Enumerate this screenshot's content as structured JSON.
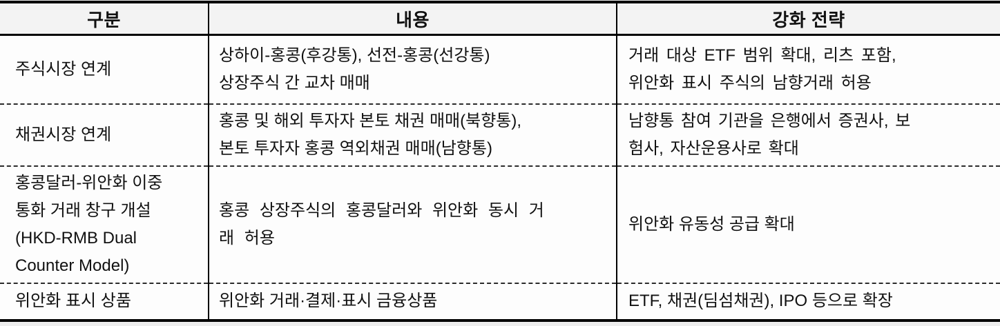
{
  "table": {
    "columns": [
      {
        "label": "구분"
      },
      {
        "label": "내용"
      },
      {
        "label": "강화 전략"
      }
    ],
    "rows": [
      {
        "category": "주식시장 연계",
        "content": "상하이-홍콩(후강통), 선전-홍콩(선강통)\n상장주식 간 교차 매매",
        "strategy": "거래 대상 ETF 범위 확대, 리츠 포함,\n위안화 표시 주식의 남향거래 허용"
      },
      {
        "category": "채권시장 연계",
        "content": "홍콩 및 해외 투자자 본토 채권 매매(북향통),\n본토 투자자 홍콩 역외채권 매매(남향통)",
        "strategy": "남향통 참여 기관을 은행에서 증권사, 보\n험사, 자산운용사로 확대"
      },
      {
        "category": "홍콩달러-위안화 이중\n통화 거래 창구 개설\n(HKD-RMB Dual\nCounter Model)",
        "content": "홍콩 상장주식의 홍콩달러와 위안화 동시 거\n래 허용",
        "strategy": "위안화 유동성 공급 확대"
      },
      {
        "category": "위안화 표시 상품",
        "content": "위안화 거래·결제·표시 금융상품",
        "strategy": "ETF, 채권(딤섬채권), IPO 등으로 확장"
      }
    ]
  },
  "colors": {
    "border": "#000000",
    "row_divider": "#2a2a2a",
    "header_bg": "#f3f3f3",
    "table_bg": "#fdfdfd",
    "page_bg": "#ededed",
    "text": "#111111"
  }
}
